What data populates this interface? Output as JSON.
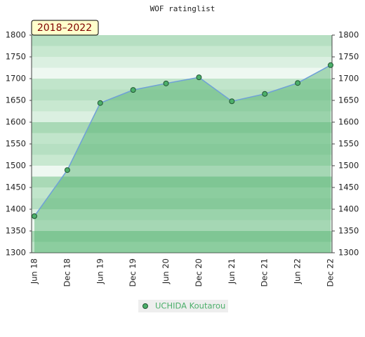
{
  "chart_data": {
    "type": "line",
    "title": "WOF ratinglist",
    "annotation": "2018–2022",
    "categories": [
      "Jun 18",
      "Dec 18",
      "Jun 19",
      "Dec 19",
      "Jun 20",
      "Dec 20",
      "Jun 21",
      "Dec 21",
      "Jun 22",
      "Dec 22"
    ],
    "series": [
      {
        "name": "UCHIDA Koutarou",
        "color": "#4caf6a",
        "line_color": "#6fa0d8",
        "values": [
          1384,
          1490,
          1644,
          1674,
          1689,
          1703,
          1648,
          1665,
          1690,
          1731
        ]
      }
    ],
    "ylim": [
      1300,
      1800
    ],
    "yticks": [
      1300,
      1350,
      1400,
      1450,
      1500,
      1550,
      1600,
      1650,
      1700,
      1750,
      1800
    ],
    "y2lim": [
      1300,
      1800
    ],
    "y2ticks": [
      1300,
      1350,
      1400,
      1450,
      1500,
      1550,
      1600,
      1650,
      1700,
      1750,
      1800
    ]
  }
}
